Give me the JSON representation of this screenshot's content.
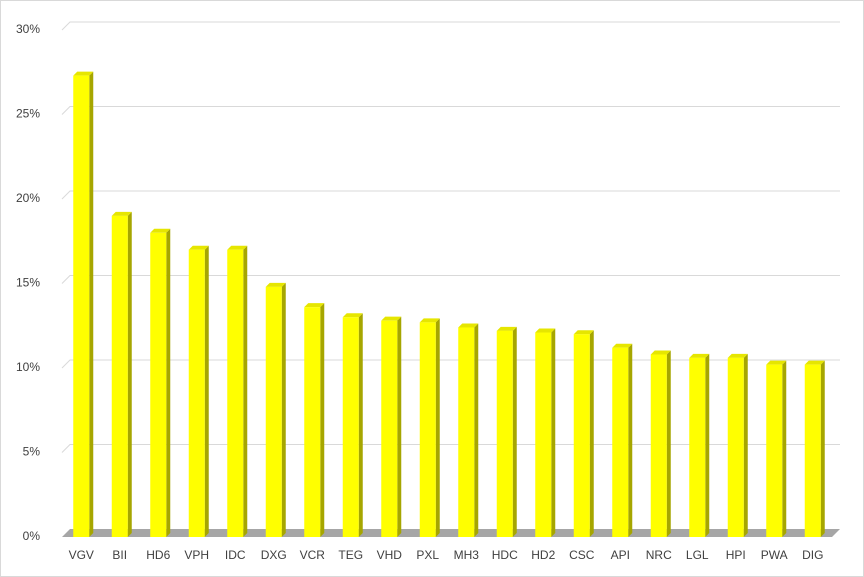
{
  "chart_data": {
    "type": "bar",
    "categories": [
      "VGV",
      "BII",
      "HD6",
      "VPH",
      "IDC",
      "DXG",
      "VCR",
      "TEG",
      "VHD",
      "PXL",
      "MH3",
      "HDC",
      "HD2",
      "CSC",
      "API",
      "NRC",
      "LGL",
      "HPI",
      "PWA",
      "DIG"
    ],
    "values": [
      27.3,
      19.0,
      18.0,
      17.0,
      17.0,
      14.8,
      13.6,
      13.0,
      12.8,
      12.7,
      12.4,
      12.2,
      12.1,
      12.0,
      11.2,
      10.8,
      10.6,
      10.6,
      10.2,
      10.2
    ],
    "color": "#ffff00",
    "ylim": [
      0,
      30
    ],
    "yticks": [
      {
        "value": 0,
        "label": "0%"
      },
      {
        "value": 5,
        "label": "5%"
      },
      {
        "value": 10,
        "label": "10%"
      },
      {
        "value": 15,
        "label": "15%"
      },
      {
        "value": 20,
        "label": "20%"
      },
      {
        "value": 25,
        "label": "25%"
      },
      {
        "value": 30,
        "label": "30%"
      }
    ],
    "grid": true
  }
}
